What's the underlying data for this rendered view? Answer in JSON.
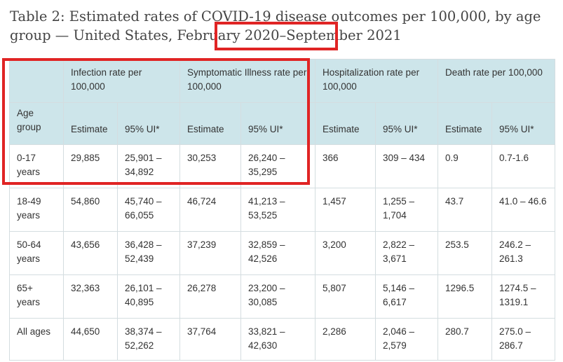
{
  "title": "Table 2: Estimated rates of COVID-19 disease outcomes per 100,000, by age group — United States, February 2020–September 2021",
  "columns": {
    "infection": "Infection rate per 100,000",
    "symptomatic": "Symptomatic Illness rate per 100,000",
    "hospitalization": "Hospitalization rate per 100,000",
    "death": "Death rate per 100,000"
  },
  "subheaders": {
    "age_group": "Age group",
    "estimate": "Estimate",
    "ui": "95% UI*"
  },
  "rows": [
    {
      "age": "0-17 years",
      "values": [
        "29,885",
        "25,901 – 34,892",
        "30,253",
        "26,240 – 35,295",
        "366",
        "309 – 434",
        "0.9",
        "0.7-1.6"
      ]
    },
    {
      "age": "18-49 years",
      "values": [
        "54,860",
        "45,740 – 66,055",
        "46,724",
        "41,213 – 53,525",
        "1,457",
        "1,255 – 1,704",
        "43.7",
        "41.0 – 46.6"
      ]
    },
    {
      "age": "50-64 years",
      "values": [
        "43,656",
        "36,428 – 52,439",
        "37,239",
        "32,859 – 42,526",
        "3,200",
        "2,822 – 3,671",
        "253.5",
        "246.2 – 261.3"
      ]
    },
    {
      "age": "65+ years",
      "values": [
        "32,363",
        "26,101 – 40,895",
        "26,278",
        "23,200 – 30,085",
        "5,807",
        "5,146 – 6,617",
        "1296.5",
        "1274.5 – 1319.1"
      ]
    },
    {
      "age": "All ages",
      "values": [
        "44,650",
        "38,374 – 52,262",
        "37,764",
        "33,821 – 42,630",
        "2,286",
        "2,046 – 2,579",
        "280.7",
        "275.0 – 286.7"
      ]
    }
  ],
  "highlight_color": "#e02424"
}
